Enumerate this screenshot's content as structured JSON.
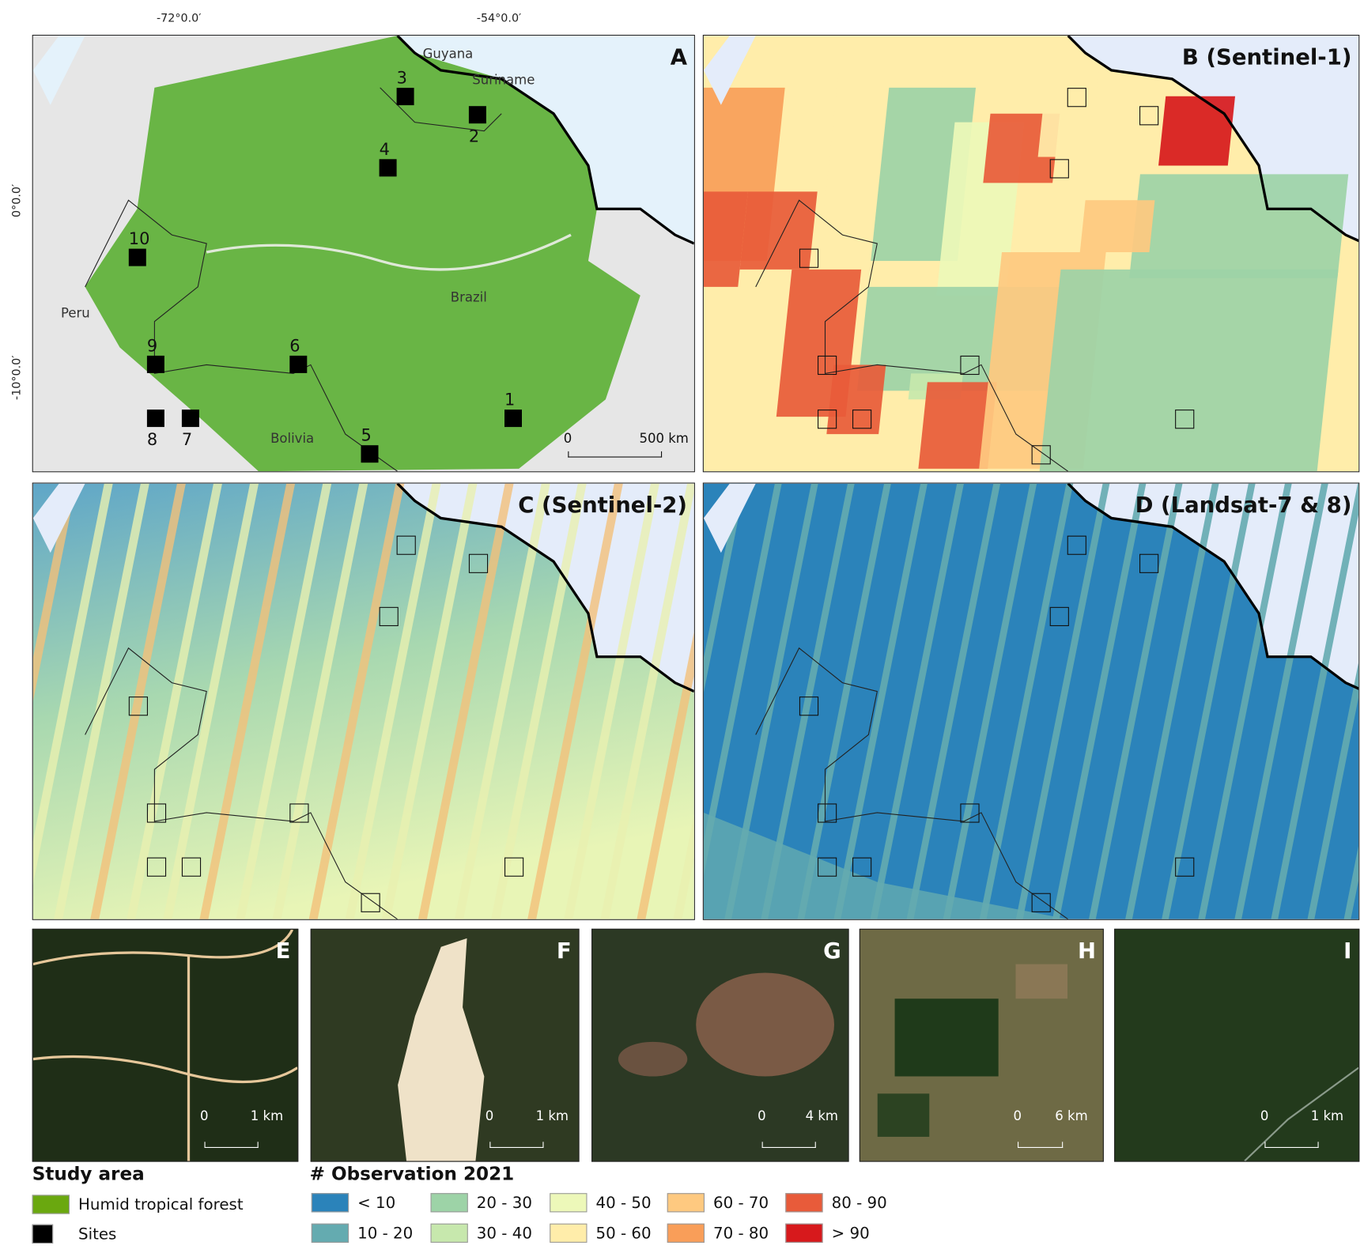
{
  "axes": {
    "lon_ticks": [
      "-72°0.0′",
      "-54°0.0′"
    ],
    "lat_ticks": [
      "0°0.0′",
      "-10°0.0′"
    ]
  },
  "panels": {
    "A": {
      "label": "A",
      "countries": [
        "Guyana",
        "Suriname",
        "Brazil",
        "Peru",
        "Bolivia"
      ],
      "scale": {
        "zero": "0",
        "max": "500 km"
      },
      "sites": [
        "1",
        "2",
        "3",
        "4",
        "5",
        "6",
        "7",
        "8",
        "9",
        "10"
      ]
    },
    "B": {
      "label": "B (Sentinel-1)"
    },
    "C": {
      "label": "C (Sentinel-2)"
    },
    "D": {
      "label": "D (Landsat-7 & 8)"
    },
    "E": {
      "label": "E",
      "scale": {
        "zero": "0",
        "max": "1 km"
      }
    },
    "F": {
      "label": "F",
      "scale": {
        "zero": "0",
        "max": "1 km"
      }
    },
    "G": {
      "label": "G",
      "scale": {
        "zero": "0",
        "max": "4 km"
      }
    },
    "H": {
      "label": "H",
      "scale": {
        "zero": "0",
        "max": "6 km"
      }
    },
    "I": {
      "label": "I",
      "scale": {
        "zero": "0",
        "max": "1 km"
      }
    }
  },
  "legend": {
    "study_area": {
      "title": "Study area",
      "items": [
        {
          "label": "Humid tropical forest",
          "color": "#6aa80f"
        },
        {
          "label": "Sites",
          "color": "#000000"
        }
      ]
    },
    "observation": {
      "title": "# Observation 2021",
      "items": [
        {
          "label": "< 10",
          "color": "#2b83ba"
        },
        {
          "label": "10 - 20",
          "color": "#64abb0"
        },
        {
          "label": "20 - 30",
          "color": "#9dd3a7"
        },
        {
          "label": "30 - 40",
          "color": "#c7e8ad"
        },
        {
          "label": "40 - 50",
          "color": "#edf8b9"
        },
        {
          "label": "50 - 60",
          "color": "#ffedaa"
        },
        {
          "label": "60 - 70",
          "color": "#fec980"
        },
        {
          "label": "70 - 80",
          "color": "#f99e59"
        },
        {
          "label": "80 - 90",
          "color": "#e85b3a"
        },
        {
          "label": "> 90",
          "color": "#d7191c"
        }
      ]
    }
  }
}
